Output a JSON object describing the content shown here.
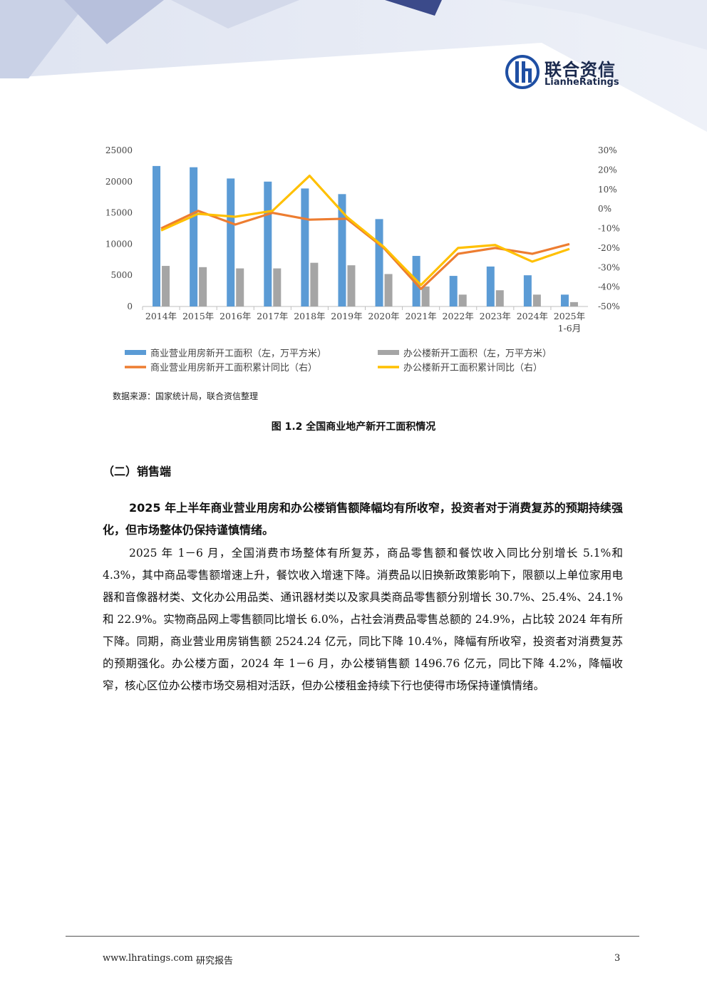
{
  "header": {
    "logo_cn": "联合资信",
    "logo_en": "LianheRatings"
  },
  "chart_data": {
    "type": "bar",
    "categories": [
      "2014年",
      "2015年",
      "2016年",
      "2017年",
      "2018年",
      "2019年",
      "2020年",
      "2021年",
      "2022年",
      "2023年",
      "2024年",
      "2025年\n1-6月"
    ],
    "category_lines": [
      [
        "2014年"
      ],
      [
        "2015年"
      ],
      [
        "2016年"
      ],
      [
        "2017年"
      ],
      [
        "2018年"
      ],
      [
        "2019年"
      ],
      [
        "2020年"
      ],
      [
        "2021年"
      ],
      [
        "2022年"
      ],
      [
        "2023年"
      ],
      [
        "2024年"
      ],
      [
        "2025年",
        "1-6月"
      ]
    ],
    "series": [
      {
        "name": "商业营业用房新开工面积（左，万平方米）",
        "type": "bar",
        "axis": "left",
        "color": "#5b9bd5",
        "values": [
          22500,
          22300,
          20500,
          20000,
          18900,
          18000,
          14000,
          8100,
          4900,
          6400,
          5000,
          1900
        ]
      },
      {
        "name": "办公楼新开工面积（左，万平方米）",
        "type": "bar",
        "axis": "left",
        "color": "#a5a5a5",
        "values": [
          6500,
          6300,
          6100,
          6100,
          7000,
          6600,
          5200,
          3200,
          1900,
          2600,
          1900,
          700
        ]
      },
      {
        "name": "商业营业用房新开工面积累计同比（右）",
        "type": "line",
        "axis": "right",
        "color": "#ed7d31",
        "values": [
          -10,
          -1,
          -8,
          -2,
          -5.5,
          -5,
          -20,
          -41,
          -23,
          -20,
          -23,
          -18
        ]
      },
      {
        "name": "办公楼新开工面积累计同比（右）",
        "type": "line",
        "axis": "right",
        "color": "#ffc000",
        "values": [
          -11,
          -2.5,
          -4,
          -1,
          17,
          -4,
          -19.5,
          -39,
          -20,
          -18.5,
          -27,
          -20.5
        ]
      }
    ],
    "left_axis": {
      "ylim": [
        0,
        25000
      ],
      "ticks": [
        "0",
        "5000",
        "10000",
        "15000",
        "20000",
        "25000"
      ]
    },
    "right_axis": {
      "ylim": [
        -50,
        30
      ],
      "ticks": [
        "-50%",
        "-40%",
        "-30%",
        "-20%",
        "-10%",
        "0%",
        "10%",
        "20%",
        "30%"
      ]
    },
    "grid": false,
    "legend_position": "bottom"
  },
  "figure": {
    "source": "数据来源：国家统计局，联合资信整理",
    "title": "图 1.2    全国商业地产新开工面积情况"
  },
  "section": {
    "heading": "（二）销售端"
  },
  "paragraphs": {
    "lead": "2025 年上半年商业营业用房和办公楼销售额降幅均有所收窄，投资者对于消费复苏的预期持续强化，但市场整体仍保持谨慎情绪。",
    "body": "2025 年 1－6 月，全国消费市场整体有所复苏，商品零售额和餐饮收入同比分别增长 5.1%和 4.3%，其中商品零售额增速上升，餐饮收入增速下降。消费品以旧换新政策影响下，限额以上单位家用电器和音像器材类、文化办公用品类、通讯器材类以及家具类商品零售额分别增长 30.7%、25.4%、24.1%和 22.9%。实物商品网上零售额同比增长 6.0%，占社会消费品零售总额的 24.9%，占比较 2024 年有所下降。同期，商业营业用房销售额 2524.24 亿元，同比下降 10.4%，降幅有所收窄，投资者对消费复苏的预期强化。办公楼方面，2024 年 1－6 月，办公楼销售额 1496.76 亿元，同比下降 4.2%，降幅收窄，核心区位办公楼市场交易相对活跃，但办公楼租金持续下行也使得市场保持谨慎情绪。"
  },
  "footer": {
    "site": "www.lhratings.com",
    "label": "研究报告",
    "page": "3"
  }
}
